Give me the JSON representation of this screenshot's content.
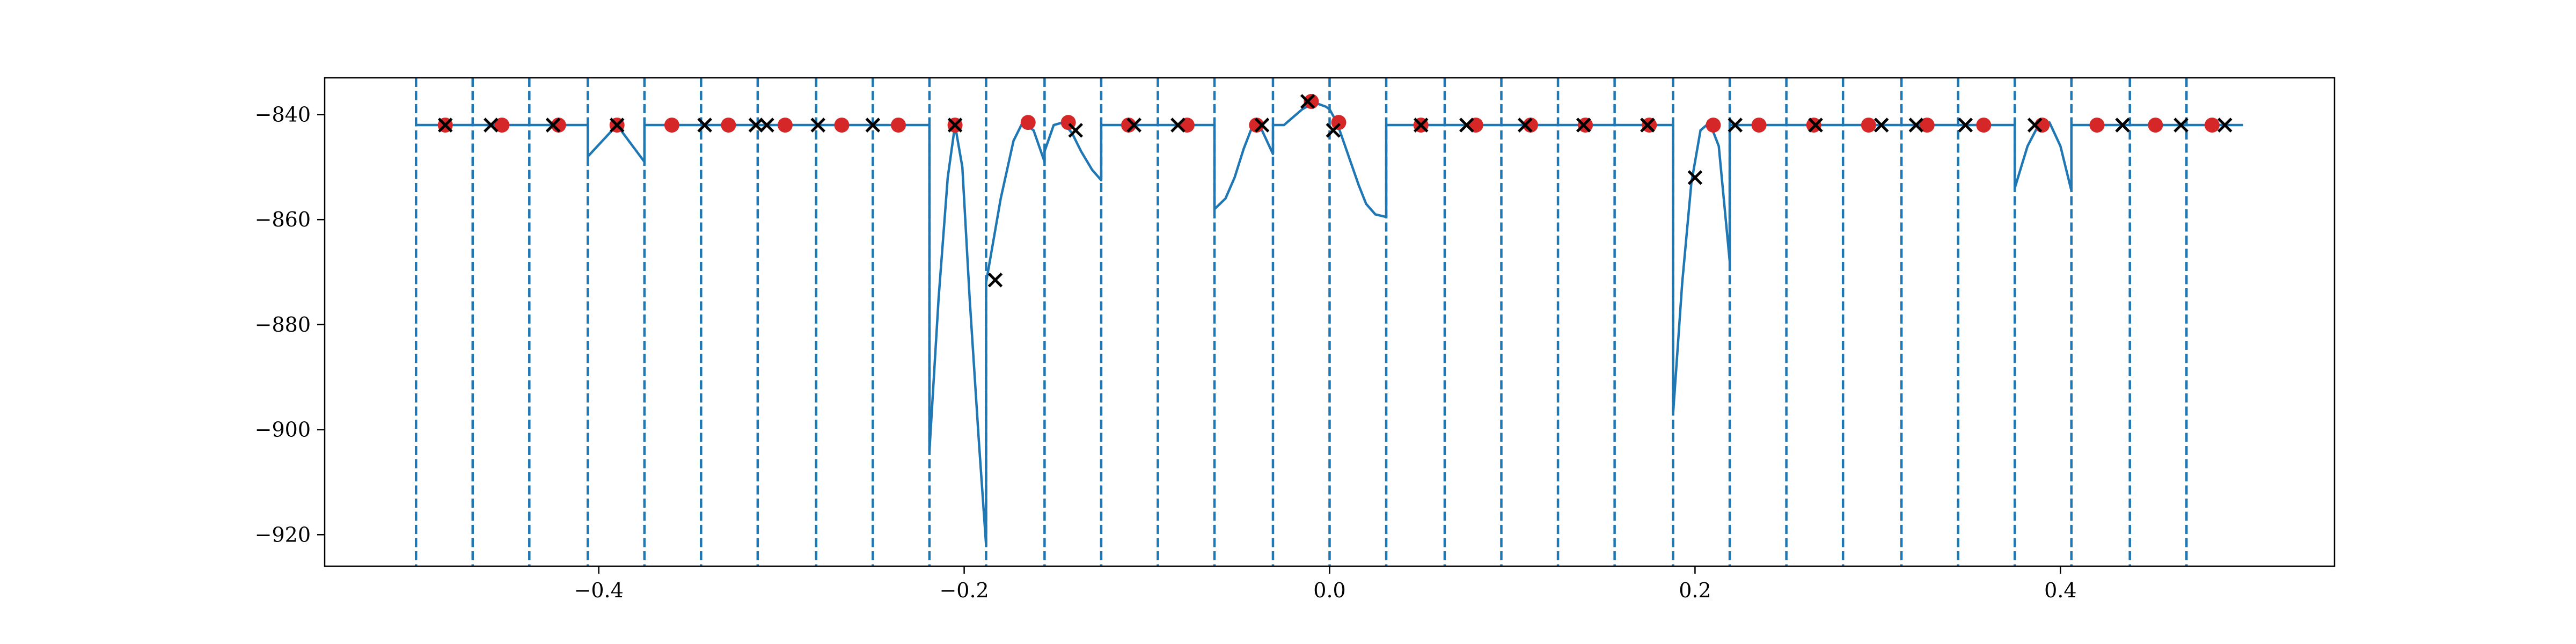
{
  "chart_data": {
    "type": "line",
    "title": "",
    "xlabel": "",
    "ylabel": "",
    "xlim": [
      -0.55,
      0.55
    ],
    "ylim": [
      -926,
      -833
    ],
    "xticks": [
      -0.4,
      -0.2,
      0.0,
      0.2,
      0.4
    ],
    "xtick_labels": [
      "−0.4",
      "−0.2",
      "0.0",
      "0.2",
      "0.4"
    ],
    "yticks": [
      -840,
      -860,
      -880,
      -900,
      -920
    ],
    "ytick_labels": [
      "−840",
      "−860",
      "−880",
      "−900",
      "−920"
    ],
    "grid": false,
    "colors": {
      "line": "#1f77b4",
      "red_points": "#d62728",
      "x_points": "#000000"
    },
    "vertical_lines": [
      -0.5,
      -0.469,
      -0.438,
      -0.406,
      -0.375,
      -0.344,
      -0.313,
      -0.281,
      -0.25,
      -0.219,
      -0.188,
      -0.156,
      -0.125,
      -0.094,
      -0.063,
      -0.031,
      0.0,
      0.031,
      0.063,
      0.094,
      0.125,
      0.156,
      0.188,
      0.219,
      0.25,
      0.281,
      0.313,
      0.344,
      0.375,
      0.406,
      0.438,
      0.469
    ],
    "series": [
      {
        "type": "line",
        "segments": [
          {
            "x": [
              -0.5,
              -0.469
            ],
            "y": [
              -842,
              -842
            ]
          },
          {
            "x": [
              -0.469,
              -0.438
            ],
            "y": [
              -842,
              -842
            ]
          },
          {
            "x": [
              -0.438,
              -0.406
            ],
            "y": [
              -842,
              -842
            ]
          },
          {
            "x": [
              -0.406,
              -0.39,
              -0.375
            ],
            "y": [
              -848,
              -842,
              -849
            ]
          },
          {
            "x": [
              -0.375,
              -0.344
            ],
            "y": [
              -842,
              -842
            ]
          },
          {
            "x": [
              -0.344,
              -0.313
            ],
            "y": [
              -842,
              -842
            ]
          },
          {
            "x": [
              -0.313,
              -0.281
            ],
            "y": [
              -842,
              -842
            ]
          },
          {
            "x": [
              -0.281,
              -0.25
            ],
            "y": [
              -842,
              -842
            ]
          },
          {
            "x": [
              -0.25,
              -0.219
            ],
            "y": [
              -842,
              -842
            ]
          },
          {
            "x": [
              -0.219,
              -0.214,
              -0.209,
              -0.205,
              -0.201,
              -0.197,
              -0.192,
              -0.188
            ],
            "y": [
              -904,
              -875,
              -852,
              -842,
              -850,
              -875,
              -902,
              -922
            ]
          },
          {
            "x": [
              -0.188,
              -0.18,
              -0.173,
              -0.168,
              -0.162,
              -0.156
            ],
            "y": [
              -872,
              -856,
              -845,
              -841.5,
              -843,
              -849
            ]
          },
          {
            "x": [
              -0.156,
              -0.151,
              -0.146,
              -0.141,
              -0.136,
              -0.13,
              -0.125
            ],
            "y": [
              -847,
              -842,
              -841.5,
              -843.5,
              -847,
              -850.5,
              -852.5
            ]
          },
          {
            "x": [
              -0.125,
              -0.094
            ],
            "y": [
              -842,
              -842
            ]
          },
          {
            "x": [
              -0.094,
              -0.063
            ],
            "y": [
              -842,
              -842
            ]
          },
          {
            "x": [
              -0.063,
              -0.057,
              -0.052,
              -0.047,
              -0.042,
              -0.037,
              -0.031
            ],
            "y": [
              -858,
              -856,
              -852,
              -846.5,
              -842,
              -843,
              -847.5
            ]
          },
          {
            "x": [
              -0.031,
              -0.025,
              -0.02,
              -0.015,
              -0.01,
              -0.006,
              -0.002,
              0.0
            ],
            "y": [
              -842,
              -842,
              -840.5,
              -839,
              -838,
              -838,
              -838.5,
              -839
            ]
          },
          {
            "x": [
              0.0,
              0.004,
              0.008,
              0.012,
              0.016,
              0.02,
              0.025,
              0.031
            ],
            "y": [
              -839,
              -841.5,
              -845.5,
              -849.5,
              -853.5,
              -857,
              -859,
              -859.5
            ]
          },
          {
            "x": [
              0.031,
              0.031
            ],
            "y": [
              -859.5,
              -842
            ]
          },
          {
            "x": [
              0.031,
              0.063
            ],
            "y": [
              -842,
              -842
            ]
          },
          {
            "x": [
              0.063,
              0.094
            ],
            "y": [
              -842,
              -842
            ]
          },
          {
            "x": [
              0.094,
              0.125
            ],
            "y": [
              -842,
              -842
            ]
          },
          {
            "x": [
              0.125,
              0.156
            ],
            "y": [
              -842,
              -842
            ]
          },
          {
            "x": [
              0.156,
              0.188
            ],
            "y": [
              -842,
              -842
            ]
          },
          {
            "x": [
              0.188,
              0.193,
              0.198,
              0.203,
              0.208,
              0.213,
              0.219
            ],
            "y": [
              -897,
              -872,
              -853,
              -843,
              -841.5,
              -846,
              -868
            ]
          },
          {
            "x": [
              0.219,
              0.25
            ],
            "y": [
              -842,
              -842
            ]
          },
          {
            "x": [
              0.25,
              0.281
            ],
            "y": [
              -842,
              -842
            ]
          },
          {
            "x": [
              0.281,
              0.313
            ],
            "y": [
              -842,
              -842
            ]
          },
          {
            "x": [
              0.313,
              0.344
            ],
            "y": [
              -842,
              -842
            ]
          },
          {
            "x": [
              0.344,
              0.375
            ],
            "y": [
              -842,
              -842
            ]
          },
          {
            "x": [
              0.375,
              0.382,
              0.388,
              0.394,
              0.4,
              0.406
            ],
            "y": [
              -854,
              -846,
              -842,
              -841.5,
              -846,
              -854.5
            ]
          },
          {
            "x": [
              0.406,
              0.438
            ],
            "y": [
              -842,
              -842
            ]
          },
          {
            "x": [
              0.438,
              0.469
            ],
            "y": [
              -842,
              -842
            ]
          },
          {
            "x": [
              0.469,
              0.5
            ],
            "y": [
              -842,
              -842
            ]
          }
        ]
      },
      {
        "type": "scatter",
        "marker": "circle",
        "x": [
          -0.484,
          -0.453,
          -0.422,
          -0.39,
          -0.36,
          -0.329,
          -0.298,
          -0.267,
          -0.236,
          -0.205,
          -0.165,
          -0.143,
          -0.11,
          -0.078,
          -0.04,
          -0.01,
          0.005,
          0.05,
          0.08,
          0.11,
          0.14,
          0.175,
          0.21,
          0.235,
          0.265,
          0.295,
          0.327,
          0.358,
          0.39,
          0.42,
          0.452,
          0.483
        ],
        "y": [
          -842,
          -842,
          -842,
          -842,
          -842,
          -842,
          -842,
          -842,
          -842,
          -842,
          -841.5,
          -841.5,
          -842,
          -842,
          -842,
          -837.5,
          -841.5,
          -842,
          -842,
          -842,
          -842,
          -842,
          -842,
          -842,
          -842,
          -842,
          -842,
          -842,
          -842,
          -842,
          -842,
          -842
        ]
      },
      {
        "type": "scatter",
        "marker": "x",
        "x": [
          -0.484,
          -0.459,
          -0.425,
          -0.39,
          -0.342,
          -0.314,
          -0.308,
          -0.28,
          -0.25,
          -0.205,
          -0.183,
          -0.139,
          -0.107,
          -0.083,
          -0.037,
          -0.012,
          0.002,
          0.05,
          0.075,
          0.107,
          0.139,
          0.174,
          0.2,
          0.222,
          0.266,
          0.302,
          0.321,
          0.348,
          0.386,
          0.434,
          0.466,
          0.49
        ],
        "y": [
          -842,
          -842,
          -842,
          -842,
          -842,
          -842,
          -842,
          -842,
          -842,
          -842,
          -871.5,
          -843,
          -842,
          -842,
          -842,
          -837.5,
          -843,
          -842,
          -842,
          -842,
          -842,
          -842,
          -852,
          -842,
          -842,
          -842,
          -842,
          -842,
          -842,
          -842,
          -842,
          -842
        ]
      }
    ]
  }
}
